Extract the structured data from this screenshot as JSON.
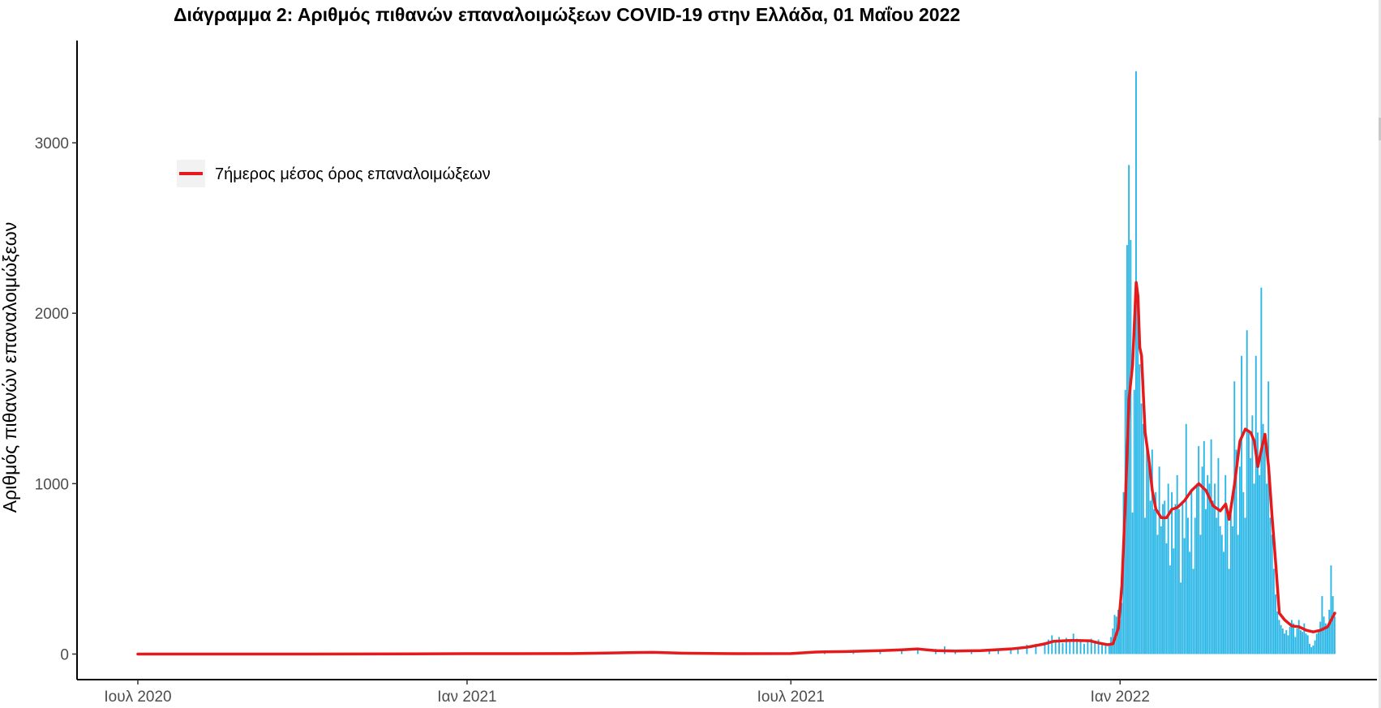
{
  "chart_data": {
    "type": "bar",
    "title": "Διάγραμμα 2: Αριθμός πιθανών επαναλοιμώξεων COVID-19 στην Ελλάδα, 01 Μαΐου 2022",
    "xlabel": "",
    "ylabel": "Αριθμός πιθανών επαναλοιμώξεων",
    "x_range": [
      "2020-07-01",
      "2022-05-01"
    ],
    "ylim": [
      -150,
      3600
    ],
    "y_ticks": [
      0,
      1000,
      2000,
      3000
    ],
    "x_ticks": [
      {
        "date": "2020-07-01",
        "label": "Ιουλ 2020"
      },
      {
        "date": "2021-01-01",
        "label": "Ιαν 2021"
      },
      {
        "date": "2021-07-01",
        "label": "Ιουλ 2021"
      },
      {
        "date": "2022-01-01",
        "label": "Ιαν 2022"
      }
    ],
    "grid": false,
    "legend": {
      "position": "top-left",
      "entries": [
        {
          "label": "7ήμερος μέσος όρος επαναλοιμώξεων",
          "color": "#e41a1c"
        }
      ]
    },
    "bar_color": "#29b6e6",
    "line_color": "#e41a1c",
    "bars": [
      [
        "2021-07-20",
        12
      ],
      [
        "2021-08-05",
        15
      ],
      [
        "2021-08-20",
        18
      ],
      [
        "2021-09-01",
        20
      ],
      [
        "2021-09-10",
        28
      ],
      [
        "2021-09-20",
        30
      ],
      [
        "2021-09-25",
        45
      ],
      [
        "2021-10-01",
        22
      ],
      [
        "2021-10-10",
        18
      ],
      [
        "2021-10-20",
        20
      ],
      [
        "2021-10-25",
        25
      ],
      [
        "2021-11-01",
        30
      ],
      [
        "2021-11-05",
        40
      ],
      [
        "2021-11-10",
        55
      ],
      [
        "2021-11-15",
        60
      ],
      [
        "2021-11-20",
        70
      ],
      [
        "2021-11-22",
        85
      ],
      [
        "2021-11-24",
        110
      ],
      [
        "2021-11-26",
        80
      ],
      [
        "2021-11-28",
        100
      ],
      [
        "2021-11-30",
        65
      ],
      [
        "2021-12-02",
        95
      ],
      [
        "2021-12-04",
        75
      ],
      [
        "2021-12-06",
        120
      ],
      [
        "2021-12-08",
        90
      ],
      [
        "2021-12-10",
        75
      ],
      [
        "2021-12-12",
        60
      ],
      [
        "2021-12-14",
        80
      ],
      [
        "2021-12-16",
        90
      ],
      [
        "2021-12-18",
        70
      ],
      [
        "2021-12-20",
        85
      ],
      [
        "2021-12-22",
        55
      ],
      [
        "2021-12-24",
        60
      ],
      [
        "2021-12-26",
        50
      ],
      [
        "2021-12-27",
        100
      ],
      [
        "2021-12-28",
        150
      ],
      [
        "2021-12-29",
        230
      ],
      [
        "2021-12-30",
        220
      ],
      [
        "2021-12-31",
        260
      ],
      [
        "2022-01-01",
        200
      ],
      [
        "2022-01-02",
        300
      ],
      [
        "2022-01-03",
        950
      ],
      [
        "2022-01-04",
        1550
      ],
      [
        "2022-01-05",
        2400
      ],
      [
        "2022-01-06",
        2870
      ],
      [
        "2022-01-07",
        2430
      ],
      [
        "2022-01-08",
        830
      ],
      [
        "2022-01-09",
        1550
      ],
      [
        "2022-01-10",
        3420
      ],
      [
        "2022-01-11",
        2100
      ],
      [
        "2022-01-12",
        1700
      ],
      [
        "2022-01-13",
        1470
      ],
      [
        "2022-01-14",
        1350
      ],
      [
        "2022-01-15",
        800
      ],
      [
        "2022-01-16",
        1240
      ],
      [
        "2022-01-17",
        1150
      ],
      [
        "2022-01-18",
        900
      ],
      [
        "2022-01-19",
        1200
      ],
      [
        "2022-01-20",
        850
      ],
      [
        "2022-01-21",
        950
      ],
      [
        "2022-01-22",
        700
      ],
      [
        "2022-01-23",
        1100
      ],
      [
        "2022-01-24",
        750
      ],
      [
        "2022-01-25",
        880
      ],
      [
        "2022-01-26",
        900
      ],
      [
        "2022-01-27",
        650
      ],
      [
        "2022-01-28",
        1000
      ],
      [
        "2022-01-29",
        520
      ],
      [
        "2022-01-30",
        950
      ],
      [
        "2022-01-31",
        620
      ],
      [
        "2022-02-01",
        880
      ],
      [
        "2022-02-02",
        1050
      ],
      [
        "2022-02-03",
        850
      ],
      [
        "2022-02-04",
        420
      ],
      [
        "2022-02-05",
        900
      ],
      [
        "2022-02-06",
        680
      ],
      [
        "2022-02-07",
        1350
      ],
      [
        "2022-02-08",
        800
      ],
      [
        "2022-02-09",
        600
      ],
      [
        "2022-02-10",
        950
      ],
      [
        "2022-02-11",
        500
      ],
      [
        "2022-02-12",
        800
      ],
      [
        "2022-02-13",
        1000
      ],
      [
        "2022-02-14",
        1220
      ],
      [
        "2022-02-15",
        700
      ],
      [
        "2022-02-16",
        1100
      ],
      [
        "2022-02-17",
        1250
      ],
      [
        "2022-02-18",
        850
      ],
      [
        "2022-02-19",
        1050
      ],
      [
        "2022-02-20",
        1000
      ],
      [
        "2022-02-21",
        1260
      ],
      [
        "2022-02-22",
        900
      ],
      [
        "2022-02-23",
        1000
      ],
      [
        "2022-02-24",
        800
      ],
      [
        "2022-02-25",
        1150
      ],
      [
        "2022-02-26",
        750
      ],
      [
        "2022-02-27",
        700
      ],
      [
        "2022-02-28",
        600
      ],
      [
        "2022-03-01",
        1050
      ],
      [
        "2022-03-02",
        850
      ],
      [
        "2022-03-03",
        500
      ],
      [
        "2022-03-04",
        820
      ],
      [
        "2022-03-05",
        750
      ],
      [
        "2022-03-06",
        1600
      ],
      [
        "2022-03-07",
        1200
      ],
      [
        "2022-03-08",
        700
      ],
      [
        "2022-03-09",
        1100
      ],
      [
        "2022-03-10",
        1750
      ],
      [
        "2022-03-11",
        950
      ],
      [
        "2022-03-12",
        800
      ],
      [
        "2022-03-13",
        1900
      ],
      [
        "2022-03-14",
        1300
      ],
      [
        "2022-03-15",
        1150
      ],
      [
        "2022-03-16",
        1400
      ],
      [
        "2022-03-17",
        1000
      ],
      [
        "2022-03-18",
        1750
      ],
      [
        "2022-03-19",
        1300
      ],
      [
        "2022-03-20",
        1050
      ],
      [
        "2022-03-21",
        2150
      ],
      [
        "2022-03-22",
        1350
      ],
      [
        "2022-03-23",
        1250
      ],
      [
        "2022-03-24",
        1000
      ],
      [
        "2022-03-25",
        1600
      ],
      [
        "2022-03-26",
        800
      ],
      [
        "2022-03-27",
        700
      ],
      [
        "2022-03-28",
        500
      ],
      [
        "2022-03-29",
        350
      ],
      [
        "2022-03-30",
        250
      ],
      [
        "2022-03-31",
        200
      ],
      [
        "2022-04-01",
        170
      ],
      [
        "2022-04-02",
        150
      ],
      [
        "2022-04-03",
        120
      ],
      [
        "2022-04-04",
        140
      ],
      [
        "2022-04-05",
        110
      ],
      [
        "2022-04-06",
        160
      ],
      [
        "2022-04-07",
        200
      ],
      [
        "2022-04-08",
        180
      ],
      [
        "2022-04-09",
        100
      ],
      [
        "2022-04-10",
        150
      ],
      [
        "2022-04-11",
        200
      ],
      [
        "2022-04-12",
        140
      ],
      [
        "2022-04-13",
        130
      ],
      [
        "2022-04-14",
        180
      ],
      [
        "2022-04-15",
        120
      ],
      [
        "2022-04-16",
        110
      ],
      [
        "2022-04-17",
        60
      ],
      [
        "2022-04-18",
        40
      ],
      [
        "2022-04-19",
        50
      ],
      [
        "2022-04-20",
        80
      ],
      [
        "2022-04-21",
        120
      ],
      [
        "2022-04-22",
        140
      ],
      [
        "2022-04-23",
        190
      ],
      [
        "2022-04-24",
        340
      ],
      [
        "2022-04-25",
        220
      ],
      [
        "2022-04-26",
        180
      ],
      [
        "2022-04-27",
        160
      ],
      [
        "2022-04-28",
        260
      ],
      [
        "2022-04-29",
        520
      ],
      [
        "2022-04-30",
        340
      ],
      [
        "2022-05-01",
        220
      ]
    ],
    "moving_average": [
      [
        "2020-07-01",
        0
      ],
      [
        "2020-10-01",
        0
      ],
      [
        "2021-01-01",
        2
      ],
      [
        "2021-03-01",
        3
      ],
      [
        "2021-04-01",
        8
      ],
      [
        "2021-04-15",
        10
      ],
      [
        "2021-05-01",
        5
      ],
      [
        "2021-06-01",
        2
      ],
      [
        "2021-07-01",
        3
      ],
      [
        "2021-07-15",
        12
      ],
      [
        "2021-08-01",
        15
      ],
      [
        "2021-08-20",
        20
      ],
      [
        "2021-09-01",
        25
      ],
      [
        "2021-09-10",
        30
      ],
      [
        "2021-09-20",
        20
      ],
      [
        "2021-10-01",
        18
      ],
      [
        "2021-10-15",
        20
      ],
      [
        "2021-11-01",
        30
      ],
      [
        "2021-11-10",
        40
      ],
      [
        "2021-11-20",
        60
      ],
      [
        "2021-11-25",
        75
      ],
      [
        "2021-12-05",
        80
      ],
      [
        "2021-12-15",
        78
      ],
      [
        "2021-12-20",
        65
      ],
      [
        "2021-12-25",
        55
      ],
      [
        "2021-12-28",
        60
      ],
      [
        "2021-12-31",
        150
      ],
      [
        "2022-01-02",
        400
      ],
      [
        "2022-01-04",
        900
      ],
      [
        "2022-01-06",
        1500
      ],
      [
        "2022-01-08",
        1700
      ],
      [
        "2022-01-10",
        2180
      ],
      [
        "2022-01-11",
        2100
      ],
      [
        "2022-01-12",
        1800
      ],
      [
        "2022-01-13",
        1750
      ],
      [
        "2022-01-15",
        1300
      ],
      [
        "2022-01-17",
        1150
      ],
      [
        "2022-01-19",
        960
      ],
      [
        "2022-01-21",
        850
      ],
      [
        "2022-01-24",
        800
      ],
      [
        "2022-01-27",
        800
      ],
      [
        "2022-01-30",
        850
      ],
      [
        "2022-02-02",
        860
      ],
      [
        "2022-02-06",
        900
      ],
      [
        "2022-02-10",
        960
      ],
      [
        "2022-02-14",
        1000
      ],
      [
        "2022-02-18",
        960
      ],
      [
        "2022-02-22",
        870
      ],
      [
        "2022-02-26",
        840
      ],
      [
        "2022-03-01",
        880
      ],
      [
        "2022-03-03",
        790
      ],
      [
        "2022-03-06",
        1000
      ],
      [
        "2022-03-09",
        1250
      ],
      [
        "2022-03-12",
        1320
      ],
      [
        "2022-03-15",
        1300
      ],
      [
        "2022-03-17",
        1250
      ],
      [
        "2022-03-19",
        1100
      ],
      [
        "2022-03-21",
        1200
      ],
      [
        "2022-03-23",
        1290
      ],
      [
        "2022-03-25",
        1100
      ],
      [
        "2022-03-27",
        800
      ],
      [
        "2022-03-29",
        530
      ],
      [
        "2022-03-31",
        240
      ],
      [
        "2022-04-03",
        200
      ],
      [
        "2022-04-07",
        165
      ],
      [
        "2022-04-11",
        160
      ],
      [
        "2022-04-15",
        140
      ],
      [
        "2022-04-19",
        130
      ],
      [
        "2022-04-23",
        140
      ],
      [
        "2022-04-27",
        160
      ],
      [
        "2022-05-01",
        240
      ]
    ]
  }
}
